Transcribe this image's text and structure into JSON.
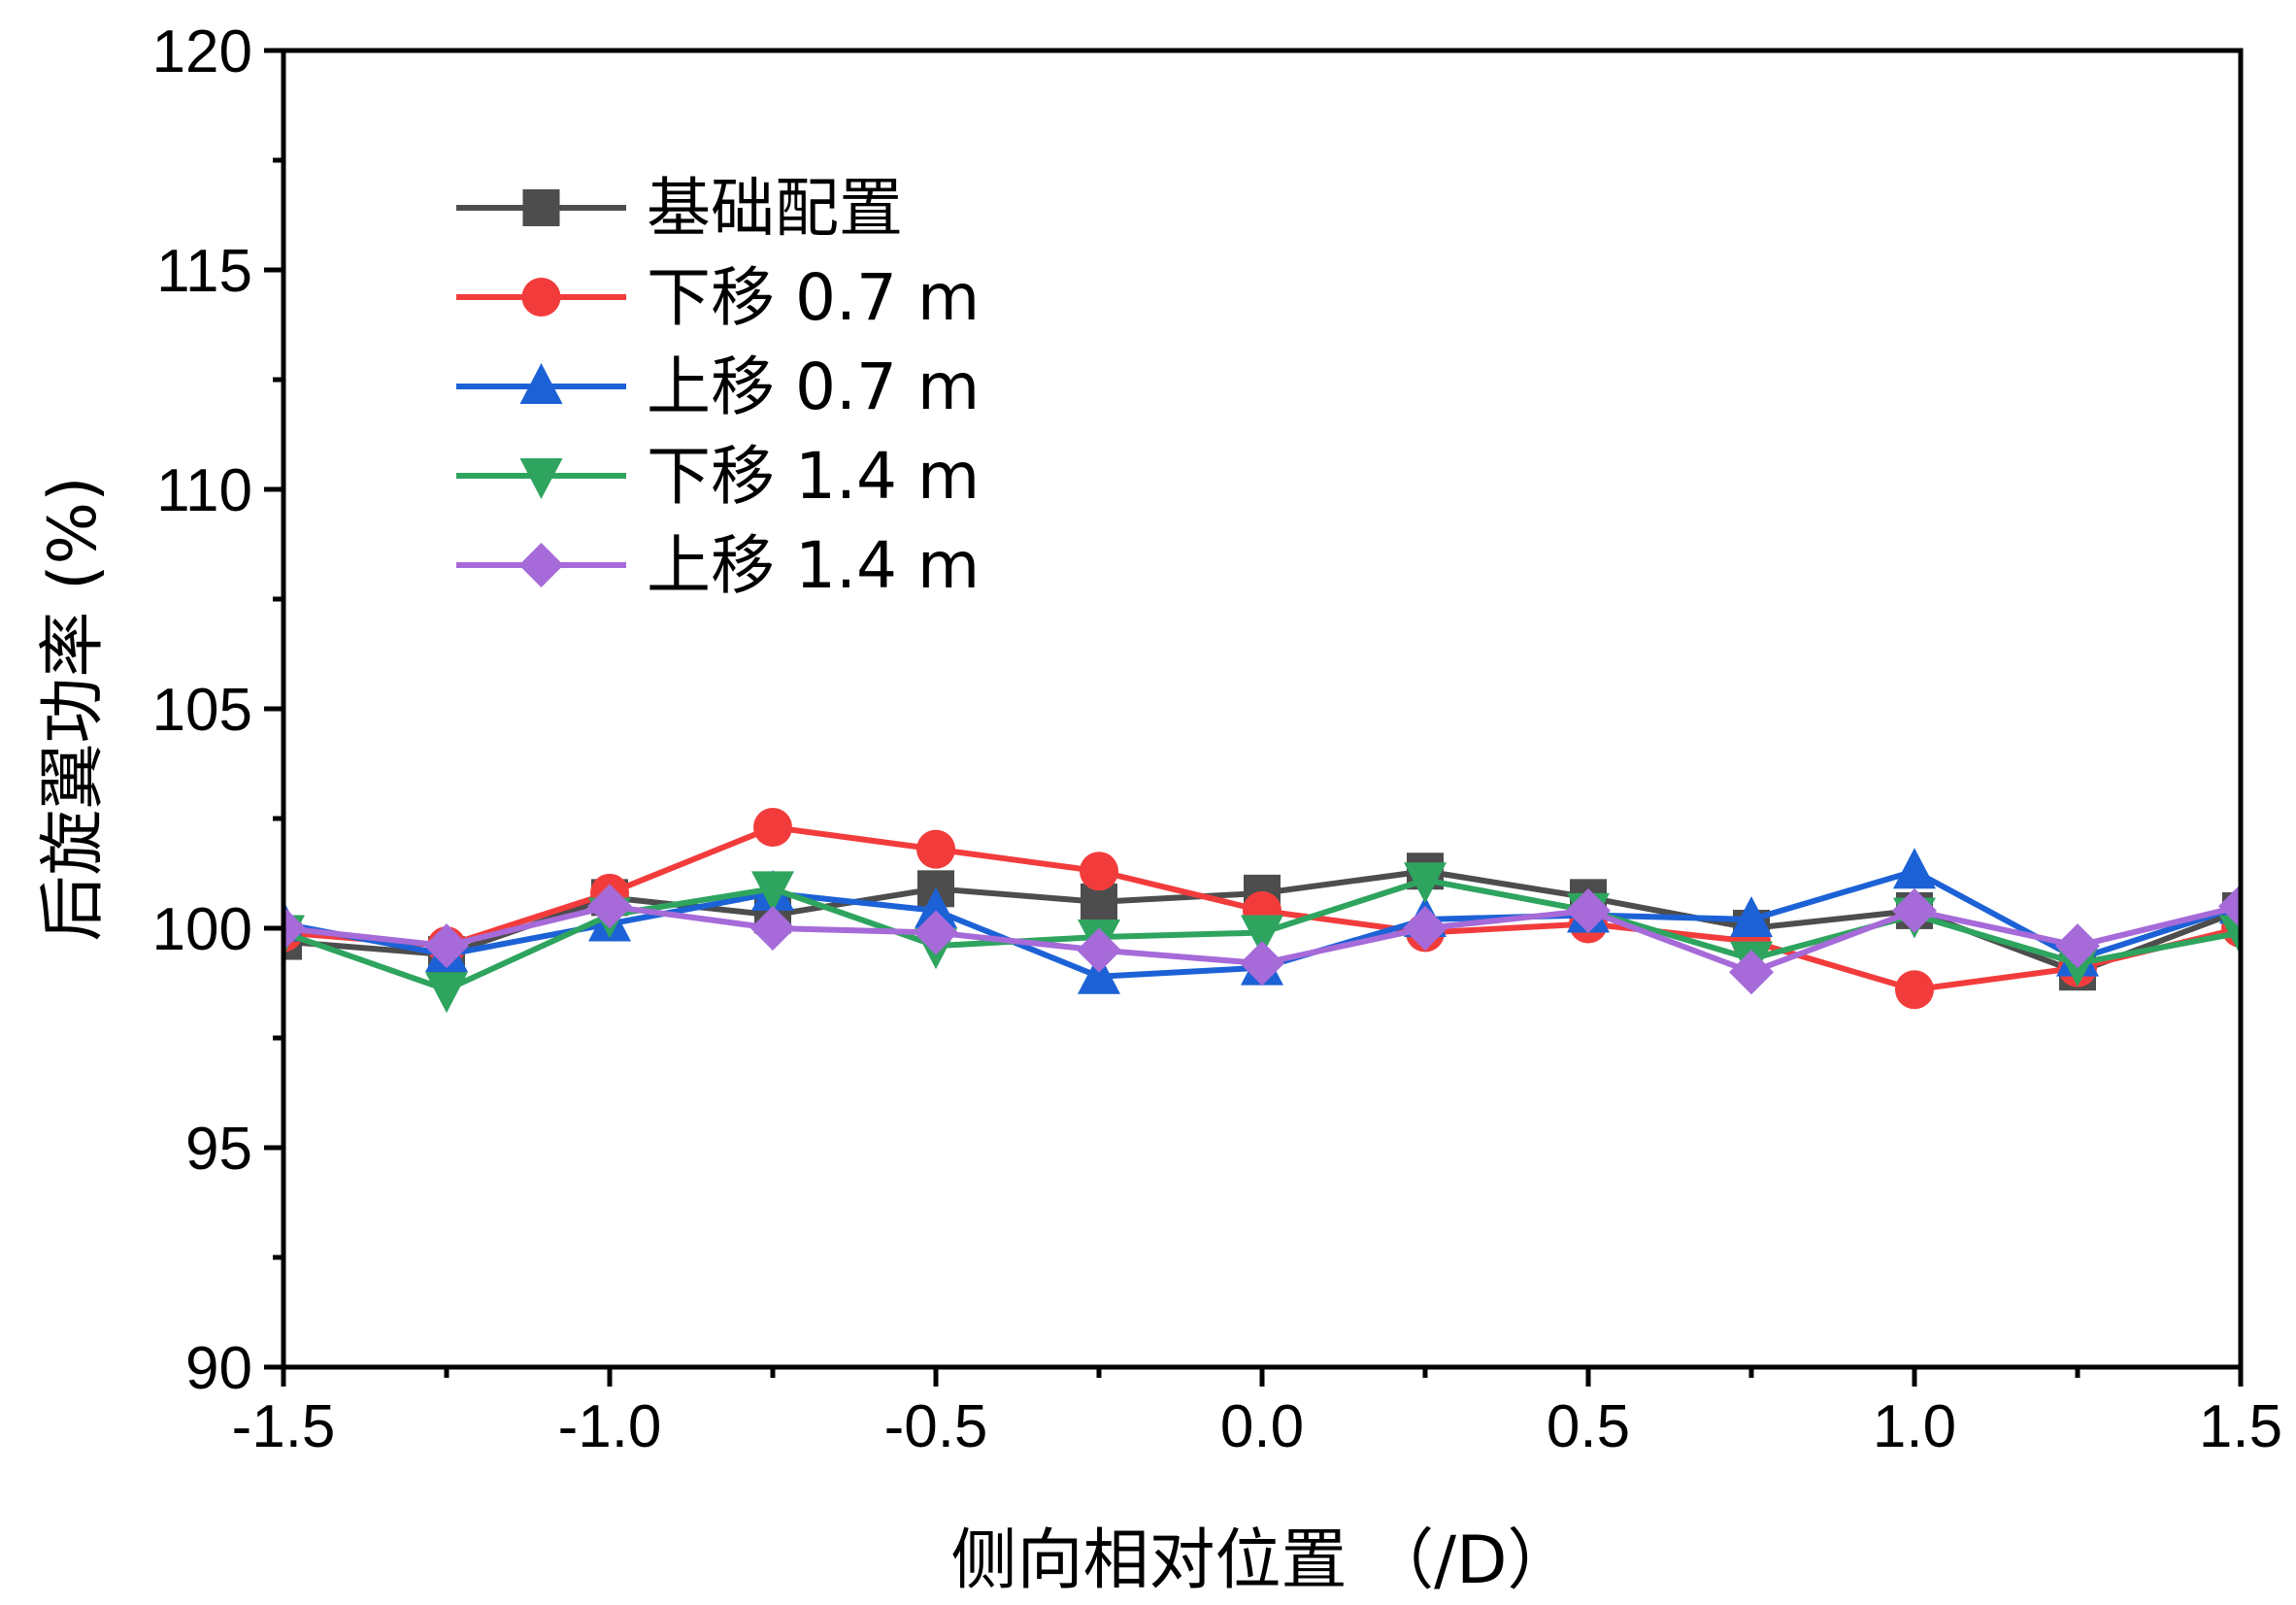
{
  "chart_data": {
    "type": "line",
    "xlabel": "侧向相对位置 （/D）",
    "ylabel": "后旋翼功率 (%)",
    "xlim": [
      -1.5,
      1.5
    ],
    "ylim": [
      90,
      120
    ],
    "x_ticks": [
      -1.5,
      -1.0,
      -0.5,
      0.0,
      0.5,
      1.0,
      1.5
    ],
    "x_tick_labels": [
      "-1.5",
      "-1.0",
      "-0.5",
      "0.0",
      "0.5",
      "1.0",
      "1.5"
    ],
    "y_ticks": [
      90,
      95,
      100,
      105,
      110,
      115,
      120
    ],
    "y_tick_labels": [
      "90",
      "95",
      "100",
      "105",
      "110",
      "115",
      "120"
    ],
    "legend_position": "top-left",
    "x": [
      -1.5,
      -1.25,
      -1.0,
      -0.75,
      -0.5,
      -0.25,
      0.0,
      0.25,
      0.5,
      0.75,
      1.0,
      1.25,
      1.5
    ],
    "series": [
      {
        "name": "基础配置",
        "color": "#4d4d4d",
        "marker": "square",
        "values": [
          99.7,
          99.4,
          100.7,
          100.3,
          100.9,
          100.6,
          100.8,
          101.3,
          100.7,
          100.0,
          100.4,
          99.0,
          100.4
        ]
      },
      {
        "name": "下移 0.7 m",
        "color": "#f23c3c",
        "marker": "circle",
        "values": [
          99.9,
          99.6,
          100.8,
          102.3,
          101.8,
          101.3,
          100.4,
          99.9,
          100.1,
          99.7,
          98.6,
          99.1,
          100.0
        ]
      },
      {
        "name": "上移 0.7 m",
        "color": "#1c62d6",
        "marker": "triangle-up",
        "values": [
          100.1,
          99.4,
          100.1,
          100.8,
          100.4,
          98.9,
          99.1,
          100.2,
          100.3,
          100.2,
          101.3,
          99.3,
          100.5
        ]
      },
      {
        "name": "下移 1.4 m",
        "color": "#2ea45f",
        "marker": "triangle-down",
        "values": [
          99.9,
          98.6,
          100.3,
          100.9,
          99.6,
          99.8,
          99.9,
          101.1,
          100.4,
          99.3,
          100.3,
          99.2,
          99.9
        ]
      },
      {
        "name": "上移 1.4 m",
        "color": "#a66ad9",
        "marker": "diamond",
        "values": [
          100.0,
          99.6,
          100.5,
          100.0,
          99.9,
          99.5,
          99.2,
          100.0,
          100.4,
          99.0,
          100.4,
          99.6,
          100.5
        ]
      }
    ]
  }
}
